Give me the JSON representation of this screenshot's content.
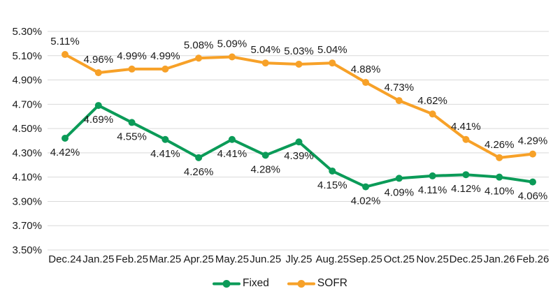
{
  "chart": {
    "title": "",
    "text_color": "#1a1a1a",
    "grid_color": "#d9d9d9",
    "background": "#ffffff"
  },
  "chart_data": {
    "type": "line",
    "title": "",
    "xlabel": "",
    "ylabel": "",
    "grid": "horizontal",
    "legend_position": "bottom-center",
    "value_format": "0.00%",
    "ylim": [
      3.5,
      5.3
    ],
    "y_ticks": [
      5.3,
      5.1,
      4.9,
      4.7,
      4.5,
      4.3,
      4.1,
      3.9,
      3.7,
      3.5
    ],
    "y_tick_labels": [
      "5.30%",
      "5.10%",
      "4.90%",
      "4.70%",
      "4.50%",
      "4.30%",
      "4.10%",
      "3.90%",
      "3.70%",
      "3.50%"
    ],
    "categories": [
      "Dec.24",
      "Jan.25",
      "Feb.25",
      "Mar.25",
      "Apr.25",
      "May.25",
      "Jun.25",
      "Jly.25",
      "Aug.25",
      "Sep.25",
      "Oct.25",
      "Nov.25",
      "Dec.25",
      "Jan.26",
      "Feb.26"
    ],
    "series": [
      {
        "name": "Fixed",
        "color": "#0b9b58",
        "marker": "circle",
        "label_position": "below",
        "values": [
          4.42,
          4.69,
          4.55,
          4.41,
          4.26,
          4.41,
          4.28,
          4.39,
          4.15,
          4.02,
          4.09,
          4.11,
          4.12,
          4.1,
          4.06
        ],
        "labels": [
          "4.42%",
          "4.69%",
          "4.55%",
          "4.41%",
          "4.26%",
          "4.41%",
          "4.28%",
          "4.39%",
          "4.15%",
          "4.02%",
          "4.09%",
          "4.11%",
          "4.12%",
          "4.10%",
          "4.06%"
        ]
      },
      {
        "name": "SOFR",
        "color": "#f7a128",
        "marker": "circle",
        "label_position": "above",
        "values": [
          5.11,
          4.96,
          4.99,
          4.99,
          5.08,
          5.09,
          5.04,
          5.03,
          5.04,
          4.88,
          4.73,
          4.62,
          4.41,
          4.26,
          4.29
        ],
        "labels": [
          "5.11%",
          "4.96%",
          "4.99%",
          "4.99%",
          "5.08%",
          "5.09%",
          "5.04%",
          "5.03%",
          "5.04%",
          "4.88%",
          "4.73%",
          "4.62%",
          "4.41%",
          "4.26%",
          "4.29%"
        ]
      }
    ]
  }
}
